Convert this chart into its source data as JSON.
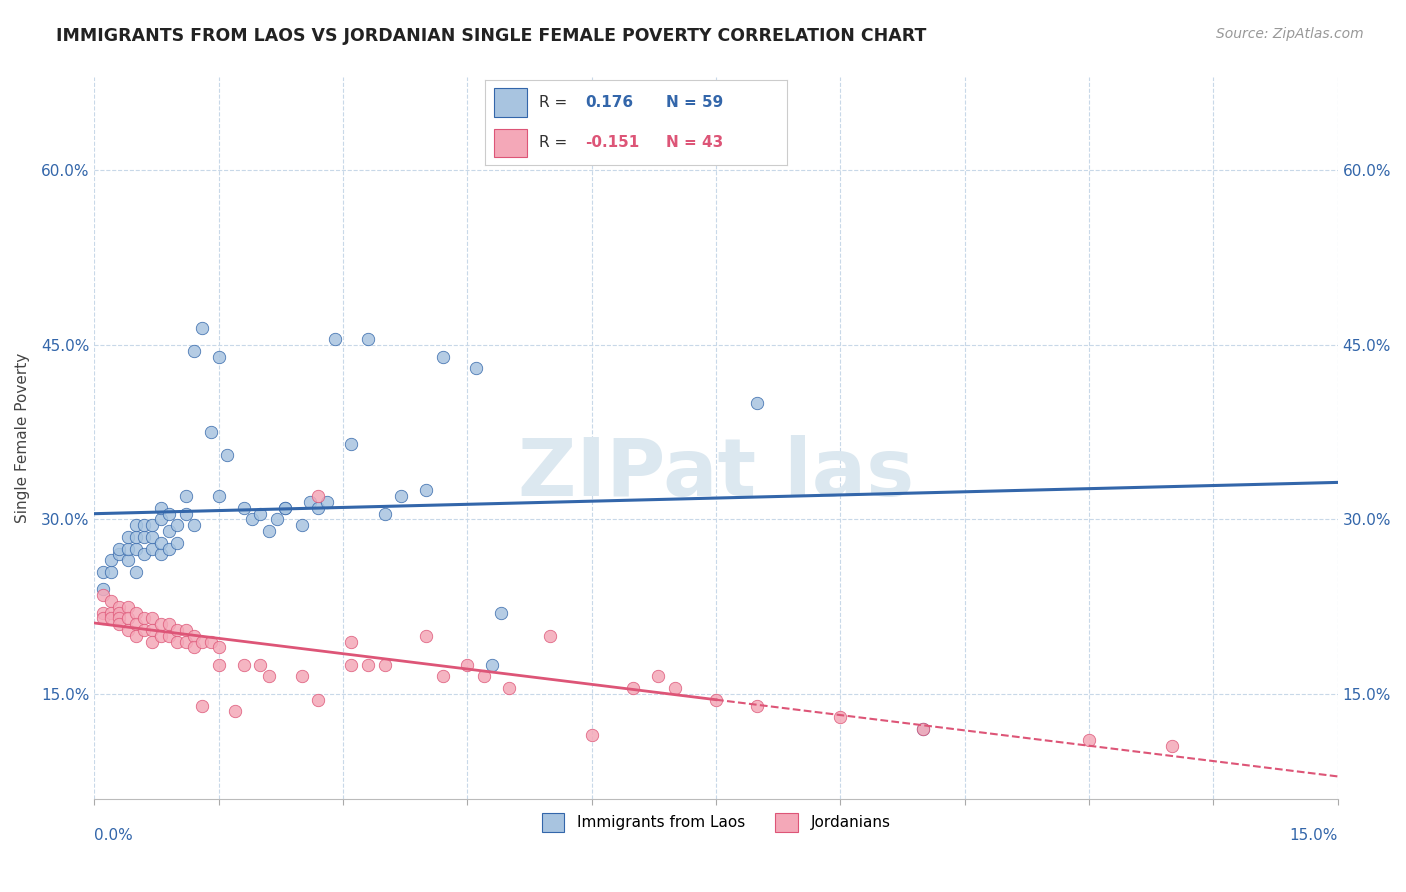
{
  "title": "IMMIGRANTS FROM LAOS VS JORDANIAN SINGLE FEMALE POVERTY CORRELATION CHART",
  "source": "Source: ZipAtlas.com",
  "ylabel": "Single Female Poverty",
  "y_ticks": [
    0.15,
    0.3,
    0.45,
    0.6
  ],
  "y_tick_labels": [
    "15.0%",
    "30.0%",
    "45.0%",
    "60.0%"
  ],
  "x_range": [
    0.0,
    0.15
  ],
  "y_range": [
    0.06,
    0.68
  ],
  "blue_color": "#a8c4e0",
  "pink_color": "#f4a8b8",
  "blue_line_color": "#3366aa",
  "pink_line_color": "#dd5577",
  "watermark": "ZIPat las",
  "laos_points": [
    [
      0.001,
      0.24
    ],
    [
      0.001,
      0.255
    ],
    [
      0.002,
      0.255
    ],
    [
      0.002,
      0.265
    ],
    [
      0.003,
      0.27
    ],
    [
      0.003,
      0.275
    ],
    [
      0.004,
      0.265
    ],
    [
      0.004,
      0.275
    ],
    [
      0.004,
      0.285
    ],
    [
      0.005,
      0.255
    ],
    [
      0.005,
      0.275
    ],
    [
      0.005,
      0.285
    ],
    [
      0.005,
      0.295
    ],
    [
      0.006,
      0.27
    ],
    [
      0.006,
      0.285
    ],
    [
      0.006,
      0.295
    ],
    [
      0.007,
      0.275
    ],
    [
      0.007,
      0.285
    ],
    [
      0.007,
      0.295
    ],
    [
      0.008,
      0.27
    ],
    [
      0.008,
      0.28
    ],
    [
      0.008,
      0.3
    ],
    [
      0.008,
      0.31
    ],
    [
      0.009,
      0.275
    ],
    [
      0.009,
      0.29
    ],
    [
      0.009,
      0.305
    ],
    [
      0.01,
      0.28
    ],
    [
      0.01,
      0.295
    ],
    [
      0.011,
      0.305
    ],
    [
      0.011,
      0.32
    ],
    [
      0.012,
      0.295
    ],
    [
      0.012,
      0.445
    ],
    [
      0.013,
      0.465
    ],
    [
      0.014,
      0.375
    ],
    [
      0.015,
      0.44
    ],
    [
      0.015,
      0.32
    ],
    [
      0.016,
      0.355
    ],
    [
      0.018,
      0.31
    ],
    [
      0.019,
      0.3
    ],
    [
      0.02,
      0.305
    ],
    [
      0.021,
      0.29
    ],
    [
      0.022,
      0.3
    ],
    [
      0.023,
      0.31
    ],
    [
      0.023,
      0.31
    ],
    [
      0.025,
      0.295
    ],
    [
      0.026,
      0.315
    ],
    [
      0.027,
      0.31
    ],
    [
      0.028,
      0.315
    ],
    [
      0.029,
      0.455
    ],
    [
      0.031,
      0.365
    ],
    [
      0.033,
      0.455
    ],
    [
      0.035,
      0.305
    ],
    [
      0.037,
      0.32
    ],
    [
      0.04,
      0.325
    ],
    [
      0.042,
      0.44
    ],
    [
      0.046,
      0.43
    ],
    [
      0.048,
      0.175
    ],
    [
      0.049,
      0.22
    ],
    [
      0.08,
      0.4
    ],
    [
      0.1,
      0.12
    ]
  ],
  "jordan_points": [
    [
      0.001,
      0.235
    ],
    [
      0.001,
      0.22
    ],
    [
      0.001,
      0.215
    ],
    [
      0.002,
      0.23
    ],
    [
      0.002,
      0.22
    ],
    [
      0.002,
      0.215
    ],
    [
      0.003,
      0.225
    ],
    [
      0.003,
      0.22
    ],
    [
      0.003,
      0.215
    ],
    [
      0.003,
      0.21
    ],
    [
      0.004,
      0.225
    ],
    [
      0.004,
      0.215
    ],
    [
      0.004,
      0.205
    ],
    [
      0.005,
      0.22
    ],
    [
      0.005,
      0.21
    ],
    [
      0.005,
      0.2
    ],
    [
      0.006,
      0.215
    ],
    [
      0.006,
      0.205
    ],
    [
      0.007,
      0.215
    ],
    [
      0.007,
      0.205
    ],
    [
      0.007,
      0.195
    ],
    [
      0.008,
      0.21
    ],
    [
      0.008,
      0.2
    ],
    [
      0.009,
      0.21
    ],
    [
      0.009,
      0.2
    ],
    [
      0.01,
      0.205
    ],
    [
      0.01,
      0.195
    ],
    [
      0.011,
      0.205
    ],
    [
      0.011,
      0.195
    ],
    [
      0.012,
      0.2
    ],
    [
      0.012,
      0.19
    ],
    [
      0.013,
      0.195
    ],
    [
      0.013,
      0.14
    ],
    [
      0.014,
      0.195
    ],
    [
      0.015,
      0.19
    ],
    [
      0.015,
      0.175
    ],
    [
      0.017,
      0.135
    ],
    [
      0.018,
      0.175
    ],
    [
      0.02,
      0.175
    ],
    [
      0.021,
      0.165
    ],
    [
      0.025,
      0.165
    ],
    [
      0.027,
      0.145
    ],
    [
      0.027,
      0.32
    ],
    [
      0.031,
      0.175
    ],
    [
      0.031,
      0.195
    ],
    [
      0.033,
      0.175
    ],
    [
      0.035,
      0.175
    ],
    [
      0.04,
      0.2
    ],
    [
      0.042,
      0.165
    ],
    [
      0.045,
      0.175
    ],
    [
      0.047,
      0.165
    ],
    [
      0.05,
      0.155
    ],
    [
      0.055,
      0.2
    ],
    [
      0.06,
      0.115
    ],
    [
      0.065,
      0.155
    ],
    [
      0.068,
      0.165
    ],
    [
      0.07,
      0.155
    ],
    [
      0.075,
      0.145
    ],
    [
      0.08,
      0.14
    ],
    [
      0.09,
      0.13
    ],
    [
      0.1,
      0.12
    ],
    [
      0.12,
      0.11
    ],
    [
      0.13,
      0.105
    ]
  ]
}
